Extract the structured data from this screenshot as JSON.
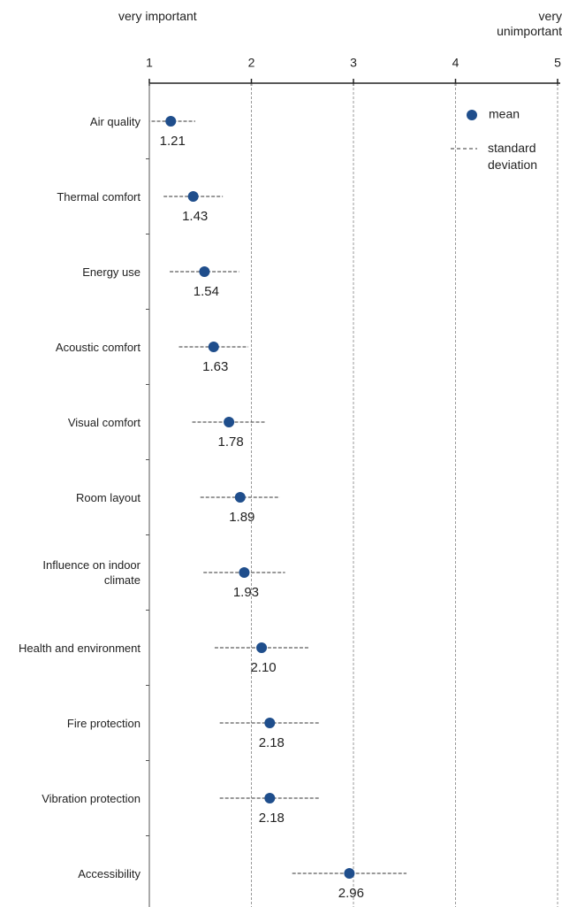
{
  "chart_data": {
    "type": "dot",
    "axis_left_label": "very important",
    "axis_right_label": "very unimportant",
    "categories": [
      "Air quality",
      "Thermal comfort",
      "Energy use",
      "Acoustic comfort",
      "Visual comfort",
      "Room layout",
      "Influence on indoor climate",
      "Health and environment",
      "Fire protection",
      "Vibration protection",
      "Accessibility"
    ],
    "values": [
      1.21,
      1.43,
      1.54,
      1.63,
      1.78,
      1.89,
      1.93,
      2.1,
      2.18,
      2.18,
      2.96
    ],
    "value_labels": [
      "1.21",
      "1.43",
      "1.54",
      "1.63",
      "1.78",
      "1.89",
      "1.93",
      "2.10",
      "2.18",
      "2.18",
      "2.96"
    ],
    "errors": [
      0.24,
      0.29,
      0.34,
      0.34,
      0.36,
      0.39,
      0.4,
      0.46,
      0.49,
      0.49,
      0.56
    ],
    "color": "#1f4e8c",
    "legend": {
      "mean": "mean",
      "error": "standard deviation"
    },
    "xlim": [
      1,
      5
    ],
    "xticks": [
      1,
      2,
      3,
      4,
      5
    ],
    "grid": true
  }
}
